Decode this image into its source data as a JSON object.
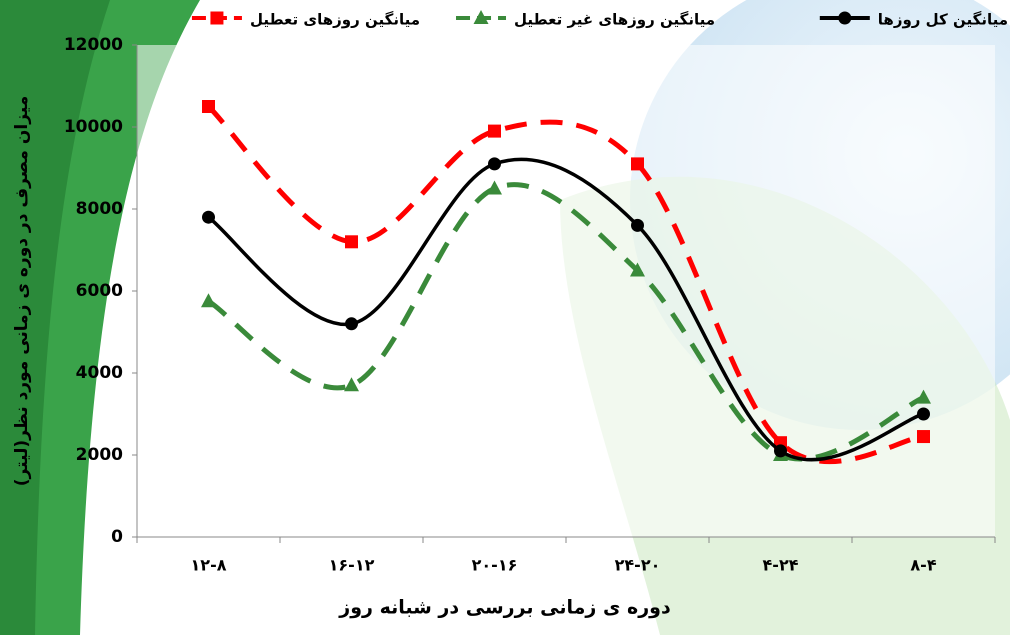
{
  "chart_data": {
    "type": "line",
    "x_label": "دوره ی زمانی بررسی در شبانه روز",
    "y_label": "میزان مصرف در دوره ی زمانی مورد نظر(لیتر)",
    "categories": [
      "۱۲-۸",
      "۱۶-۱۲",
      "۲۰-۱۶",
      "۲۴-۲۰",
      "۴-۲۴",
      "۸-۴"
    ],
    "series": [
      {
        "name": "میانگین کل روزها",
        "color": "#000000",
        "marker": "circle",
        "dash": "solid",
        "values": [
          7800,
          5200,
          9100,
          7600,
          2100,
          3000
        ]
      },
      {
        "name": "میانگین روزهای غیر تعطیل",
        "color": "#3a8a3a",
        "marker": "triangle",
        "dash": "dashed",
        "values": [
          5750,
          3700,
          8500,
          6500,
          2000,
          3400
        ]
      },
      {
        "name": "میانگین روزهای تعطیل",
        "color": "#ff0000",
        "marker": "square",
        "dash": "dashed",
        "values": [
          10500,
          7200,
          9900,
          9100,
          2300,
          2450
        ]
      }
    ],
    "ylim": [
      0,
      12000
    ],
    "yticks": [
      0,
      2000,
      4000,
      6000,
      8000,
      10000,
      12000
    ],
    "smooth": true
  }
}
